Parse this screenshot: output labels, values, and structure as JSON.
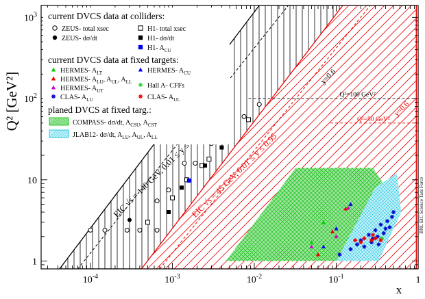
{
  "chart_data": {
    "type": "scatter",
    "xlabel": "x",
    "ylabel": "Q² [GeV²]",
    "x_scale": "log",
    "y_scale": "log",
    "xlim": [
      2.5e-05,
      1
    ],
    "ylim": [
      0.8,
      1400
    ],
    "x_ticks": [
      {
        "value": 0.0001,
        "label": "10",
        "exp": "-4"
      },
      {
        "value": 0.001,
        "label": "10",
        "exp": "-3"
      },
      {
        "value": 0.01,
        "label": "10",
        "exp": "-2"
      },
      {
        "value": 0.1,
        "label": "10",
        "exp": "-1"
      },
      {
        "value": 1,
        "label": "1",
        "exp": ""
      }
    ],
    "y_ticks": [
      {
        "value": 1,
        "label": "1",
        "exp": ""
      },
      {
        "value": 10,
        "label": "10",
        "exp": ""
      },
      {
        "value": 100,
        "label": "10",
        "exp": "2"
      },
      {
        "value": 1000,
        "label": "10",
        "exp": "3"
      }
    ],
    "legend": {
      "colliders_title": "current DVCS data at colliders:",
      "colliders": [
        {
          "marker": "open-circle",
          "label": "ZEUS- total xsec"
        },
        {
          "marker": "filled-circle",
          "label": "ZEUS- dσ/dt"
        },
        {
          "marker": "open-square",
          "label": "H1- total xsec"
        },
        {
          "marker": "filled-square",
          "label": "H1- dσ/dt"
        },
        {
          "marker": "blue-square",
          "label": "H1- A",
          "sub": "CU"
        }
      ],
      "fixed_title": "current DVCS data at fixed targets:",
      "fixed": [
        {
          "marker": "green-triangle",
          "color": "#00cc00",
          "label": "HERMES- A",
          "sub": "LT"
        },
        {
          "marker": "blue-triangle",
          "color": "#0000ee",
          "label": "HERMES- A",
          "sub": "CU"
        },
        {
          "marker": "red-triangle",
          "color": "#ee0000",
          "label": "HERMES- A",
          "sub": "LU",
          "tail": ", A",
          "sub2": "UL",
          "tail2": ", A",
          "sub3": "LL"
        },
        {
          "marker": "magenta-triangle",
          "color": "#cc00cc",
          "label": "HERMES- A",
          "sub": "UT"
        },
        {
          "marker": "green-star",
          "color": "#33cc33",
          "label": "Hall A- CFFs"
        },
        {
          "marker": "blue-star",
          "color": "#0000cc",
          "label": "CLAS- A",
          "sub": "LU"
        },
        {
          "marker": "red-star",
          "color": "#ee0000",
          "label": "CLAS- A",
          "sub": "UL"
        }
      ],
      "planned_title": "planed DVCS at fixed targ.:",
      "planned": [
        {
          "hatch": "green",
          "label": "COMPASS- dσ/dt, A",
          "sub": "CSU",
          "tail": ", A",
          "sub2": "CST"
        },
        {
          "hatch": "cyan",
          "label": "JLAB12- dσ/dt, A",
          "sub": "LU",
          "tail": ", A",
          "sub2": "UL",
          "tail2": ", A",
          "sub3": "LL"
        }
      ]
    },
    "annotations": {
      "eic_140": "EIC √s = 140 GeV, 0.01 ≤ y ≤ 0.95",
      "eic_45": "EIC √s = 45 GeV, 0.01 ≤ y ≤ 0.95",
      "y_label_black": "y=0.6",
      "y_label_red": "y=0.6",
      "q2_100": "Q²=100 GeV²",
      "q2_50": "Q²=50 GeV²",
      "credit": "BNL EIC Science Task Force"
    },
    "colors": {
      "eic140": "#000000",
      "eic45": "#ee0000",
      "compass": "#00bb00",
      "jlab": "#00bbdd"
    },
    "series": [
      {
        "name": "ZEUS- total xsec",
        "marker": "open-circle",
        "color": "#000000",
        "x": [
          0.0001,
          0.00015,
          0.00028,
          0.0004,
          0.00065,
          0.00065,
          0.0009,
          0.0014,
          0.0019,
          0.003,
          0.0045,
          0.0075,
          0.0115
        ],
        "y": [
          2.4,
          2.4,
          2.4,
          2.4,
          5.5,
          2.4,
          7.5,
          16,
          16,
          28,
          40,
          60,
          85
        ]
      },
      {
        "name": "ZEUS- dσ/dt",
        "marker": "filled-circle",
        "color": "#000000",
        "x": [
          0.0003
        ],
        "y": [
          3.2
        ]
      },
      {
        "name": "H1- total xsec",
        "marker": "open-square",
        "color": "#000000",
        "x": [
          0.0005,
          0.001,
          0.0015,
          0.0023,
          0.0028,
          0.0085
        ],
        "y": [
          3.0,
          6.0,
          10,
          15,
          18,
          55
        ]
      },
      {
        "name": "H1- dσ/dt",
        "marker": "filled-square",
        "color": "#000000",
        "x": [
          0.0009,
          0.0013,
          0.0025,
          0.004
        ],
        "y": [
          4.0,
          8.0,
          15,
          25
        ]
      },
      {
        "name": "H1- A",
        "marker": "blue-square",
        "color": "#0000ee",
        "x": [
          0.0016
        ],
        "y": [
          9.8
        ]
      },
      {
        "name": "HERMES- A",
        "marker": "red-triangle",
        "color": "#ee0000",
        "x": [
          0.06,
          0.09,
          0.13
        ],
        "y": [
          1.2,
          2.3,
          4.4
        ]
      },
      {
        "name": "HERMES- A",
        "marker": "blue-triangle",
        "color": "#0000ee",
        "x": [
          0.07,
          0.1,
          0.15
        ],
        "y": [
          1.5,
          2.5,
          5.0
        ]
      },
      {
        "name": "HERMES- A",
        "marker": "green-triangle",
        "color": "#00cc00",
        "x": [
          0.05,
          0.07
        ],
        "y": [
          1.7,
          3.0
        ]
      },
      {
        "name": "HERMES- A",
        "marker": "magenta-triangle",
        "color": "#cc00cc",
        "x": [
          0.05,
          0.1,
          0.14
        ],
        "y": [
          1.5,
          2.0,
          4.5
        ]
      },
      {
        "name": "Hall A- CFFs",
        "marker": "green-star",
        "color": "#33cc33",
        "x": [
          0.36
        ],
        "y": [
          1.9
        ]
      },
      {
        "name": "CLAS- A",
        "marker": "blue-star",
        "color": "#0000cc",
        "x": [
          0.11,
          0.15,
          0.18,
          0.2,
          0.22,
          0.25,
          0.27,
          0.3,
          0.32,
          0.35,
          0.38,
          0.42,
          0.45,
          0.48,
          0.5,
          0.28,
          0.33,
          0.4
        ],
        "y": [
          1.2,
          1.4,
          1.6,
          1.8,
          1.5,
          2.1,
          1.7,
          2.4,
          2.0,
          2.8,
          2.2,
          3.1,
          2.6,
          3.5,
          4.0,
          1.9,
          1.6,
          2.5
        ]
      },
      {
        "name": "CLAS- A",
        "marker": "red-star",
        "color": "#ee0000",
        "x": [
          0.17,
          0.2,
          0.22,
          0.27,
          0.28,
          0.3,
          0.35
        ],
        "y": [
          1.8,
          1.7,
          1.9,
          1.8,
          2.1,
          1.9,
          1.8
        ]
      }
    ]
  }
}
